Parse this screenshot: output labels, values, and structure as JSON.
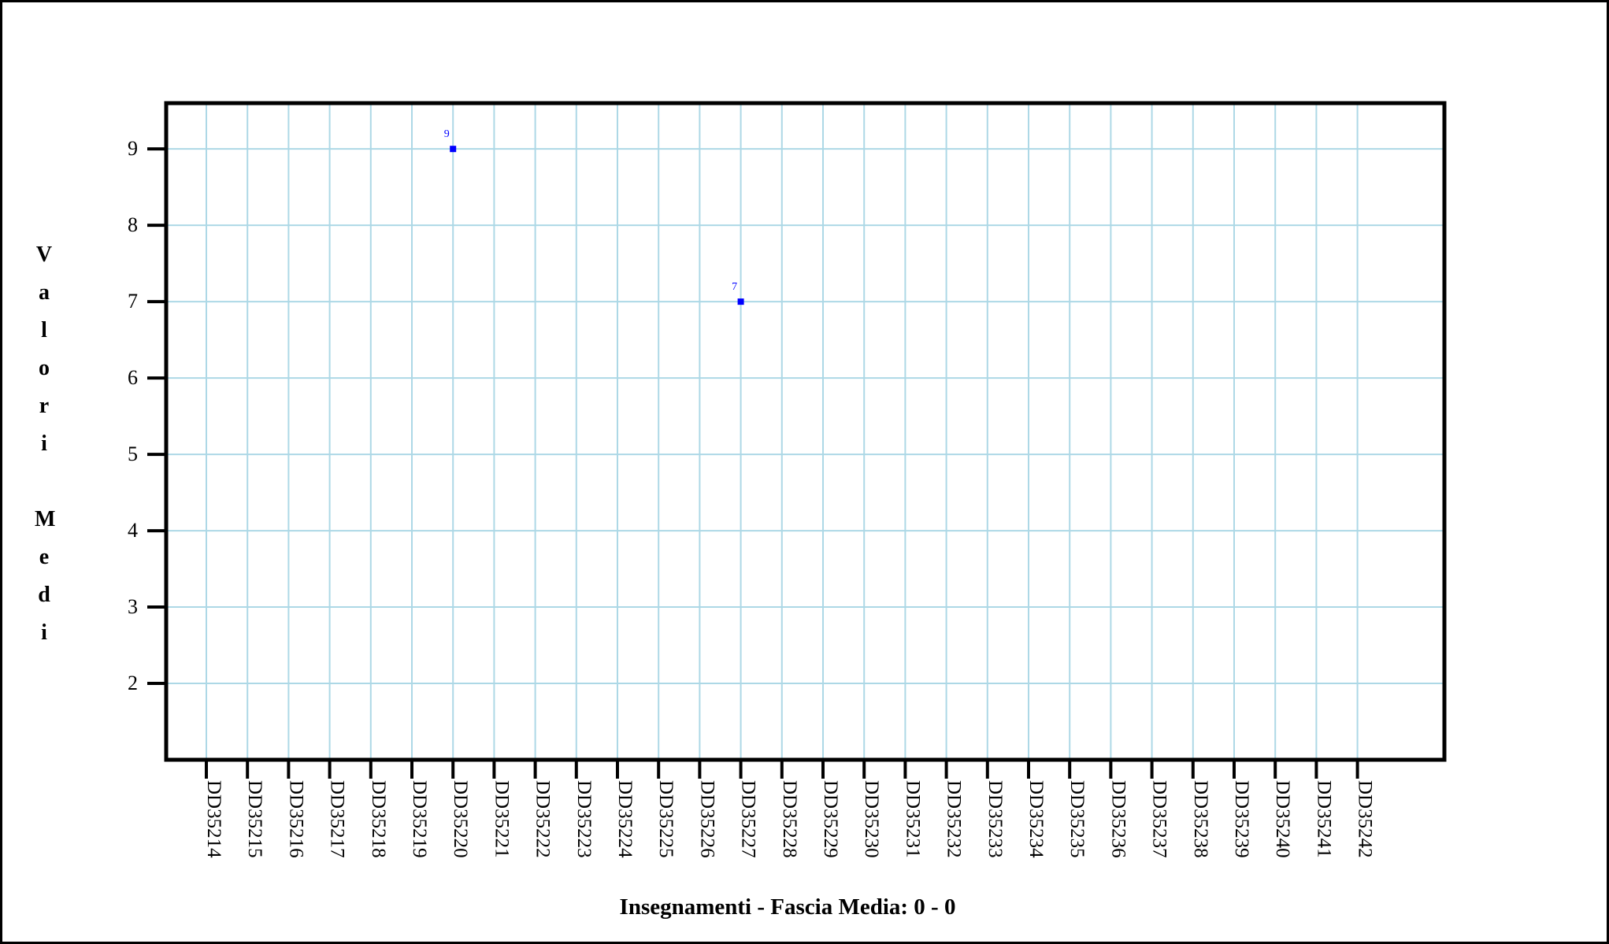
{
  "chart_data": {
    "type": "scatter",
    "title": "",
    "xlabel": "Insegnamenti - Fascia Media: 0 - 0",
    "ylabel": "Valori Medi",
    "ylim": [
      1,
      9.6
    ],
    "yticks": [
      2,
      3,
      4,
      5,
      6,
      7,
      8,
      9
    ],
    "categories": [
      "DD35214",
      "DD35215",
      "DD35216",
      "DD35217",
      "DD35218",
      "DD35219",
      "DD35220",
      "DD35221",
      "DD35222",
      "DD35223",
      "DD35224",
      "DD35225",
      "DD35226",
      "DD35227",
      "DD35228",
      "DD35229",
      "DD35230",
      "DD35231",
      "DD35232",
      "DD35233",
      "DD35234",
      "DD35235",
      "DD35236",
      "DD35237",
      "DD35238",
      "DD35239",
      "DD35240",
      "DD35241",
      "DD35242"
    ],
    "points": [
      {
        "category": "DD35220",
        "value": 9,
        "label": "9"
      },
      {
        "category": "DD35227",
        "value": 7,
        "label": "7"
      }
    ],
    "grid": true,
    "colors": {
      "grid": "#add8e6",
      "point": "#0000ff",
      "axis": "#000000"
    }
  }
}
